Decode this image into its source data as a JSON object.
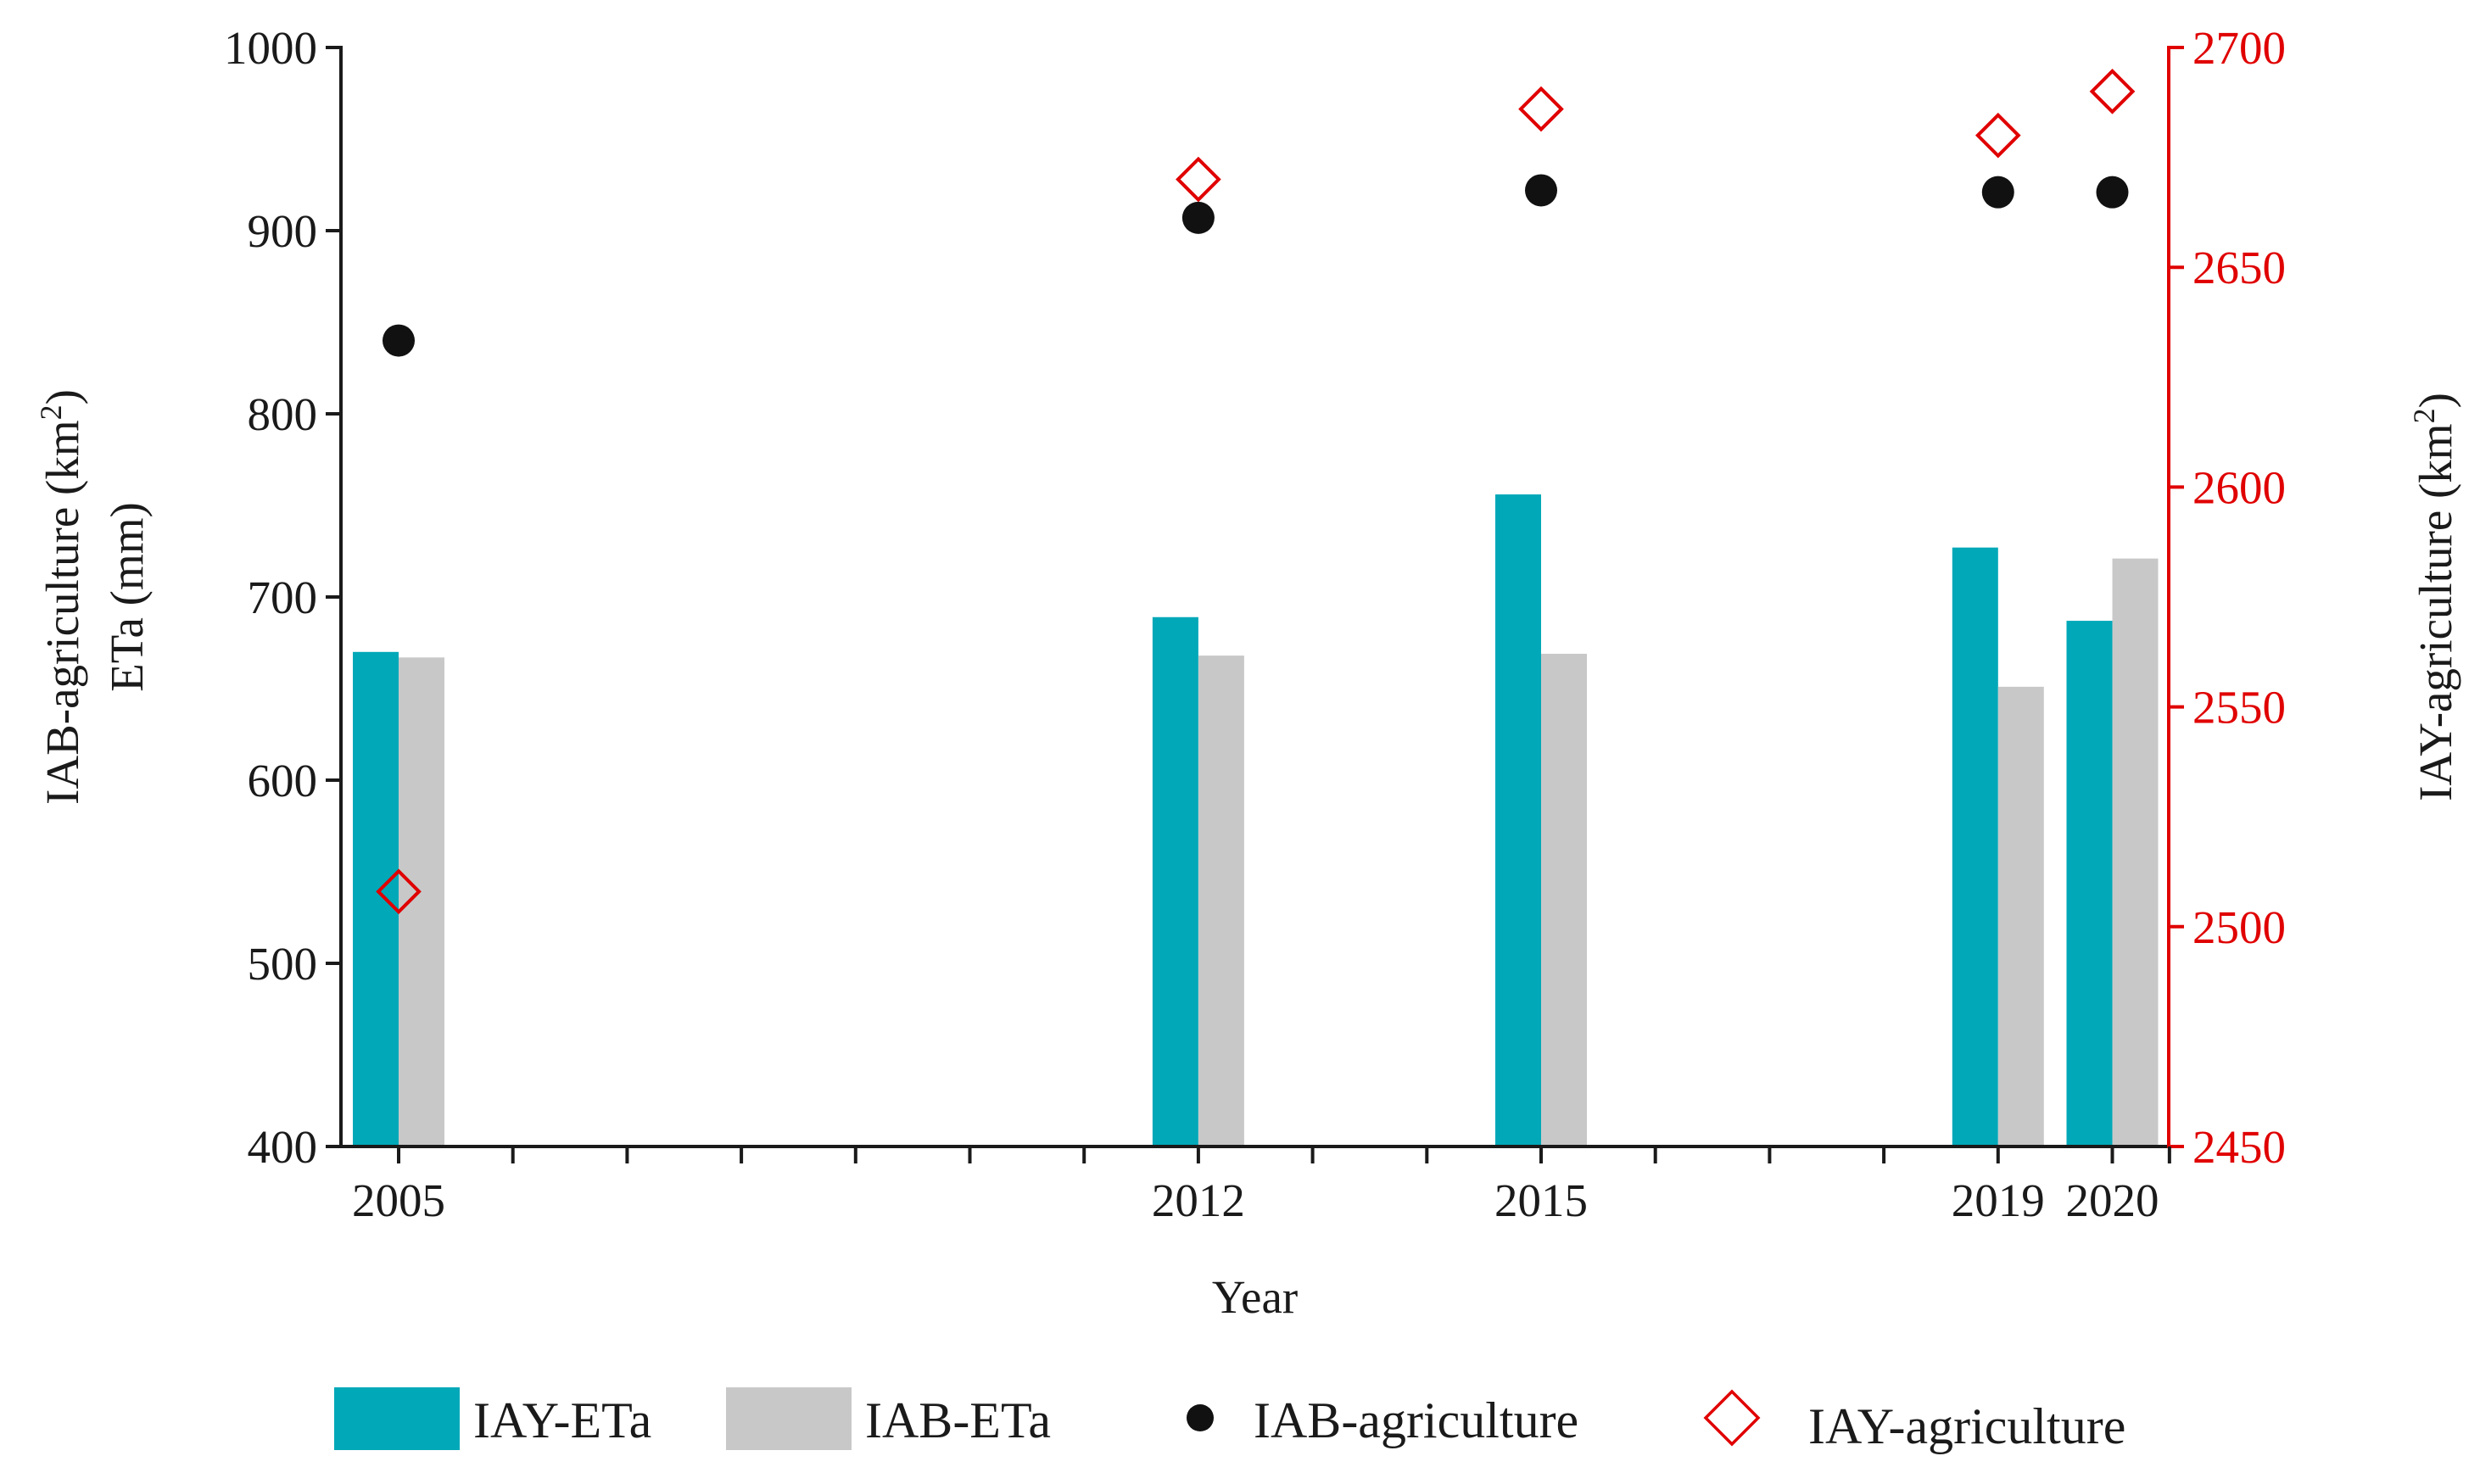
{
  "chart_data": {
    "type": "bar",
    "title": "",
    "xlabel": "Year",
    "ylabel_left_lines": [
      "IAB-agriculture (km",
      "2",
      ")",
      "ETa (mm)"
    ],
    "ylabel_right_parts": [
      "IAY-agriculture (km",
      "2",
      ")"
    ],
    "ylim_left": [
      400,
      1000
    ],
    "ylim_right": [
      2450,
      2700
    ],
    "xlim": [
      2004.5,
      2020.5
    ],
    "left_ticks": [
      400,
      500,
      600,
      700,
      800,
      900,
      1000
    ],
    "right_ticks": [
      2450,
      2500,
      2550,
      2600,
      2650,
      2700
    ],
    "x_labeled_ticks": [
      2005,
      2012,
      2015,
      2019,
      2020
    ],
    "x_minor_ticks": [
      2006,
      2007,
      2008,
      2009,
      2010,
      2011,
      2013,
      2014,
      2016,
      2017,
      2018
    ],
    "x_tick_labels": [
      "2005",
      "2012",
      "2015",
      "2019",
      "2020"
    ],
    "categories": [
      2005,
      2012,
      2015,
      2019,
      2020
    ],
    "series": [
      {
        "name": "IAY-ETa",
        "kind": "bar",
        "axis": "left",
        "color": "#00A8B8",
        "values": [
          670,
          689,
          756,
          727,
          687
        ]
      },
      {
        "name": "IAB-ETa",
        "kind": "bar",
        "axis": "left",
        "color": "#C8C8C8",
        "values": [
          667,
          668,
          669,
          651,
          721
        ]
      },
      {
        "name": "IAB-agriculture",
        "kind": "scatter",
        "marker": "circle",
        "axis": "left",
        "color": "#111111",
        "values": [
          840,
          907,
          922,
          921,
          921
        ]
      },
      {
        "name": "IAY-agriculture",
        "kind": "scatter",
        "marker": "diamond",
        "axis": "right",
        "color": "#E00000",
        "values": [
          2508,
          2670,
          2686,
          2680,
          2690
        ]
      }
    ],
    "right_axis_color": "#E00000",
    "legend": [
      "IAY-ETa",
      "IAB-ETa",
      "IAB-agriculture",
      "IAY-agriculture"
    ],
    "legend_position": "bottom"
  }
}
